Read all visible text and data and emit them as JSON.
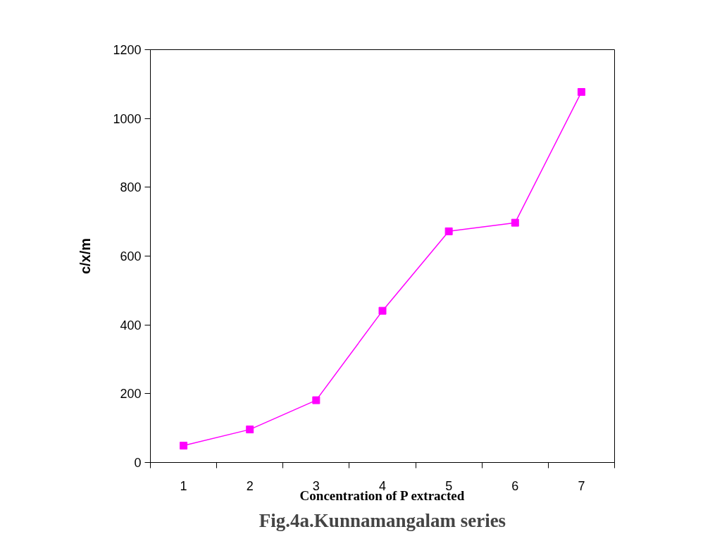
{
  "chart_data": {
    "type": "line",
    "xlabel": "Concentration of P extracted",
    "ylabel": "c/x/m",
    "categories": [
      "1",
      "2",
      "3",
      "4",
      "5",
      "6",
      "7"
    ],
    "series": [
      {
        "color": "#ff00ff",
        "values": [
          49,
          96,
          181,
          441,
          672,
          697,
          1077
        ]
      }
    ],
    "ylim": [
      0,
      1200
    ],
    "yticks": [
      0,
      200,
      400,
      600,
      800,
      1000,
      1200
    ],
    "marker": "square",
    "grid": false,
    "annotations": [
      "Fig.4a.Kunnamangalam series"
    ]
  }
}
